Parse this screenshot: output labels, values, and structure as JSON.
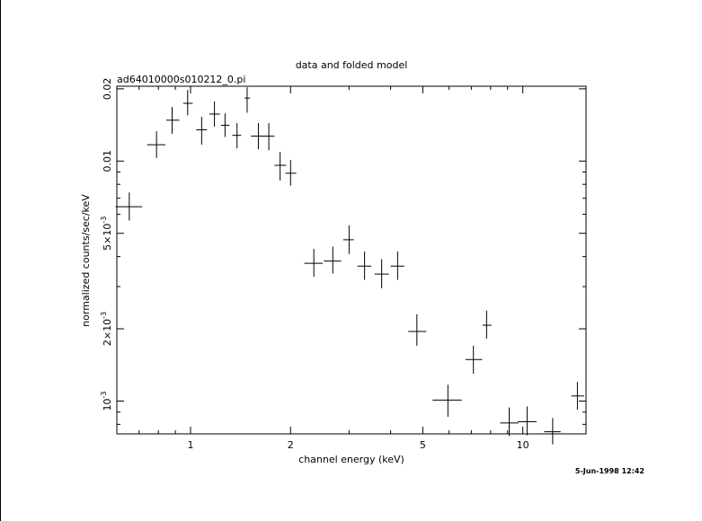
{
  "chart_data": {
    "type": "scatter",
    "title": "data and folded model",
    "subtitle": "ad64010000s010212_0.pi",
    "xlabel": "channel energy (keV)",
    "ylabel": "normalized counts/sec/keV",
    "timestamp": "5-Jun-1998 12:42",
    "x_scale": "log",
    "y_scale": "log",
    "xlim": [
      0.6,
      15.5
    ],
    "ylim": [
      0.00073,
      0.0205
    ],
    "x_ticks": [
      {
        "value": 1,
        "label": "1"
      },
      {
        "value": 2,
        "label": "2"
      },
      {
        "value": 5,
        "label": "5"
      },
      {
        "value": 10,
        "label": "10"
      }
    ],
    "y_ticks": [
      {
        "value": 0.001,
        "label": "10",
        "sup": "-3",
        "prefix": ""
      },
      {
        "value": 0.002,
        "label": "2×10",
        "sup": "-3",
        "prefix": ""
      },
      {
        "value": 0.005,
        "label": "5×10",
        "sup": "-3",
        "prefix": ""
      },
      {
        "value": 0.01,
        "label": "0.01",
        "sup": "",
        "prefix": ""
      },
      {
        "value": 0.02,
        "label": "0.02",
        "sup": "",
        "prefix": ""
      }
    ],
    "points": [
      {
        "x": 0.654,
        "xlo": 0.595,
        "xhi": 0.715,
        "y": 0.00645,
        "ylo": 0.00565,
        "yhi": 0.0074
      },
      {
        "x": 0.79,
        "xlo": 0.74,
        "xhi": 0.84,
        "y": 0.0117,
        "ylo": 0.0103,
        "yhi": 0.0133
      },
      {
        "x": 0.88,
        "xlo": 0.845,
        "xhi": 0.925,
        "y": 0.0148,
        "ylo": 0.013,
        "yhi": 0.0168
      },
      {
        "x": 0.98,
        "xlo": 0.95,
        "xhi": 1.015,
        "y": 0.0174,
        "ylo": 0.0155,
        "yhi": 0.0198
      },
      {
        "x": 1.08,
        "xlo": 1.04,
        "xhi": 1.12,
        "y": 0.0135,
        "ylo": 0.0117,
        "yhi": 0.0153
      },
      {
        "x": 1.18,
        "xlo": 1.14,
        "xhi": 1.225,
        "y": 0.0157,
        "ylo": 0.0139,
        "yhi": 0.0177
      },
      {
        "x": 1.27,
        "xlo": 1.235,
        "xhi": 1.31,
        "y": 0.0141,
        "ylo": 0.0126,
        "yhi": 0.0158
      },
      {
        "x": 1.38,
        "xlo": 1.335,
        "xhi": 1.42,
        "y": 0.0128,
        "ylo": 0.0113,
        "yhi": 0.0144
      },
      {
        "x": 1.48,
        "xlo": 1.455,
        "xhi": 1.51,
        "y": 0.0183,
        "ylo": 0.0159,
        "yhi": 0.0203
      },
      {
        "x": 1.6,
        "xlo": 1.52,
        "xhi": 1.68,
        "y": 0.0127,
        "ylo": 0.0112,
        "yhi": 0.0144
      },
      {
        "x": 1.72,
        "xlo": 1.64,
        "xhi": 1.79,
        "y": 0.0127,
        "ylo": 0.0111,
        "yhi": 0.0144
      },
      {
        "x": 1.86,
        "xlo": 1.79,
        "xhi": 1.94,
        "y": 0.0096,
        "ylo": 0.0083,
        "yhi": 0.0109
      },
      {
        "x": 2.0,
        "xlo": 1.93,
        "xhi": 2.08,
        "y": 0.0089,
        "ylo": 0.0079,
        "yhi": 0.0101
      },
      {
        "x": 2.35,
        "xlo": 2.2,
        "xhi": 2.5,
        "y": 0.00375,
        "ylo": 0.0033,
        "yhi": 0.0043
      },
      {
        "x": 2.68,
        "xlo": 2.52,
        "xhi": 2.84,
        "y": 0.00383,
        "ylo": 0.0034,
        "yhi": 0.0044
      },
      {
        "x": 3.0,
        "xlo": 2.88,
        "xhi": 3.1,
        "y": 0.0047,
        "ylo": 0.0041,
        "yhi": 0.0054
      },
      {
        "x": 3.34,
        "xlo": 3.18,
        "xhi": 3.5,
        "y": 0.00365,
        "ylo": 0.0032,
        "yhi": 0.0042
      },
      {
        "x": 3.76,
        "xlo": 3.58,
        "xhi": 3.95,
        "y": 0.00338,
        "ylo": 0.00295,
        "yhi": 0.0039
      },
      {
        "x": 4.2,
        "xlo": 4.0,
        "xhi": 4.4,
        "y": 0.00365,
        "ylo": 0.0032,
        "yhi": 0.0042
      },
      {
        "x": 4.8,
        "xlo": 4.52,
        "xhi": 5.12,
        "y": 0.00195,
        "ylo": 0.0017,
        "yhi": 0.0023
      },
      {
        "x": 5.95,
        "xlo": 5.35,
        "xhi": 6.55,
        "y": 0.00101,
        "ylo": 0.00086,
        "yhi": 0.00117
      },
      {
        "x": 7.1,
        "xlo": 6.72,
        "xhi": 7.55,
        "y": 0.00149,
        "ylo": 0.0013,
        "yhi": 0.0017
      },
      {
        "x": 7.78,
        "xlo": 7.56,
        "xhi": 8.05,
        "y": 0.00207,
        "ylo": 0.00182,
        "yhi": 0.00238
      },
      {
        "x": 9.1,
        "xlo": 8.55,
        "xhi": 9.7,
        "y": 0.00081,
        "ylo": 0.000715,
        "yhi": 0.00094
      },
      {
        "x": 10.3,
        "xlo": 9.65,
        "xhi": 11.0,
        "y": 0.00082,
        "ylo": 0.00072,
        "yhi": 0.00095
      },
      {
        "x": 12.3,
        "xlo": 11.6,
        "xhi": 13.0,
        "y": 0.000745,
        "ylo": 0.00066,
        "yhi": 0.00085
      },
      {
        "x": 14.6,
        "xlo": 14.0,
        "xhi": 15.3,
        "y": 0.00105,
        "ylo": 0.00092,
        "yhi": 0.0012
      }
    ]
  }
}
